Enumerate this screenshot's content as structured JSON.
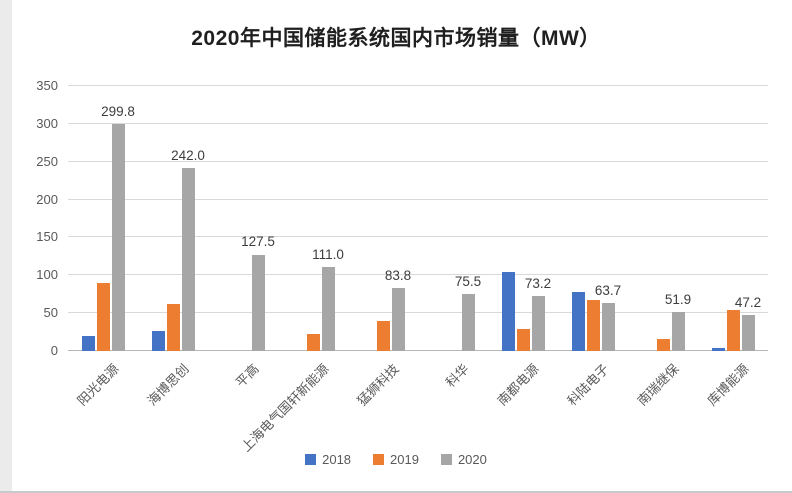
{
  "title": "2020年中国储能系统国内市场销量（MW）",
  "chart_data": {
    "type": "bar",
    "title": "2020年中国储能系统国内市场销量（MW）",
    "categories": [
      "阳光电源",
      "海博思创",
      "平高",
      "上海电气国轩新能源",
      "猛狮科技",
      "科华",
      "南都电源",
      "科陆电子",
      "南瑞继保",
      "库博能源"
    ],
    "series": [
      {
        "name": "2018",
        "color": "#4472c4",
        "values": [
          20,
          26,
          0,
          0,
          0,
          0,
          105,
          78,
          0,
          4
        ]
      },
      {
        "name": "2019",
        "color": "#ed7d31",
        "values": [
          90,
          62,
          0,
          22,
          40,
          0,
          29,
          68,
          16,
          54
        ]
      },
      {
        "name": "2020",
        "color": "#a6a6a6",
        "values": [
          299.8,
          242.0,
          127.5,
          111.0,
          83.8,
          75.5,
          73.2,
          63.7,
          51.9,
          47.2
        ]
      }
    ],
    "data_labels": {
      "series": "2020",
      "values": [
        "299.8",
        "242.0",
        "127.5",
        "111.0",
        "83.8",
        "75.5",
        "73.2",
        "63.7",
        "51.9",
        "47.2"
      ]
    },
    "ylim": [
      0,
      350
    ],
    "yticks": [
      0,
      50,
      100,
      150,
      200,
      250,
      300,
      350
    ],
    "ytick_interval": 50,
    "grid": true,
    "legend_position": "bottom"
  }
}
